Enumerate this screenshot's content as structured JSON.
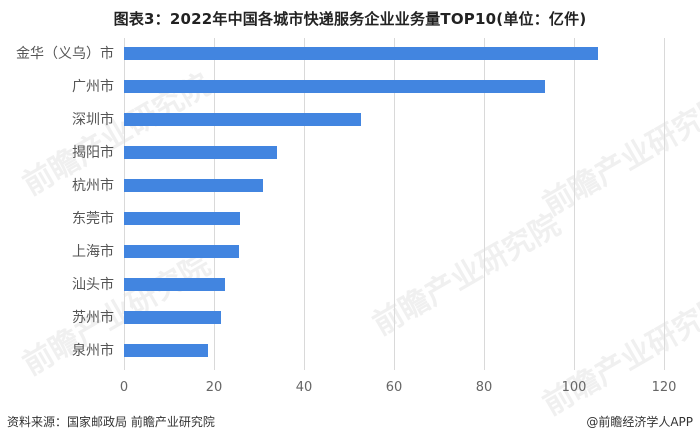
{
  "title": "图表3：2022年中国各城市快递服务企业业务量TOP10(单位：亿件)",
  "footer": {
    "source": "资料来源：国家邮政局 前瞻产业研究院",
    "credit": "@前瞻经济学人APP"
  },
  "watermark": "前瞻产业研究院",
  "colors": {
    "bar": "#4285e0",
    "grid": "#d9d9d9"
  },
  "chart_data": {
    "type": "bar",
    "orientation": "horizontal",
    "title": "图表3：2022年中国各城市快递服务企业业务量TOP10(单位：亿件)",
    "xlabel": "",
    "ylabel": "",
    "categories": [
      "金华（义乌）市",
      "广州市",
      "深圳市",
      "揭阳市",
      "杭州市",
      "东莞市",
      "上海市",
      "汕头市",
      "苏州市",
      "泉州市"
    ],
    "values": [
      105.3,
      93.6,
      52.7,
      34.0,
      30.9,
      25.8,
      25.6,
      22.5,
      21.6,
      18.7
    ],
    "xlim": [
      0,
      120
    ],
    "xticks": [
      "0",
      "20",
      "40",
      "60",
      "80",
      "100",
      "120"
    ],
    "grid": true,
    "legend": null,
    "unit": "亿件"
  }
}
